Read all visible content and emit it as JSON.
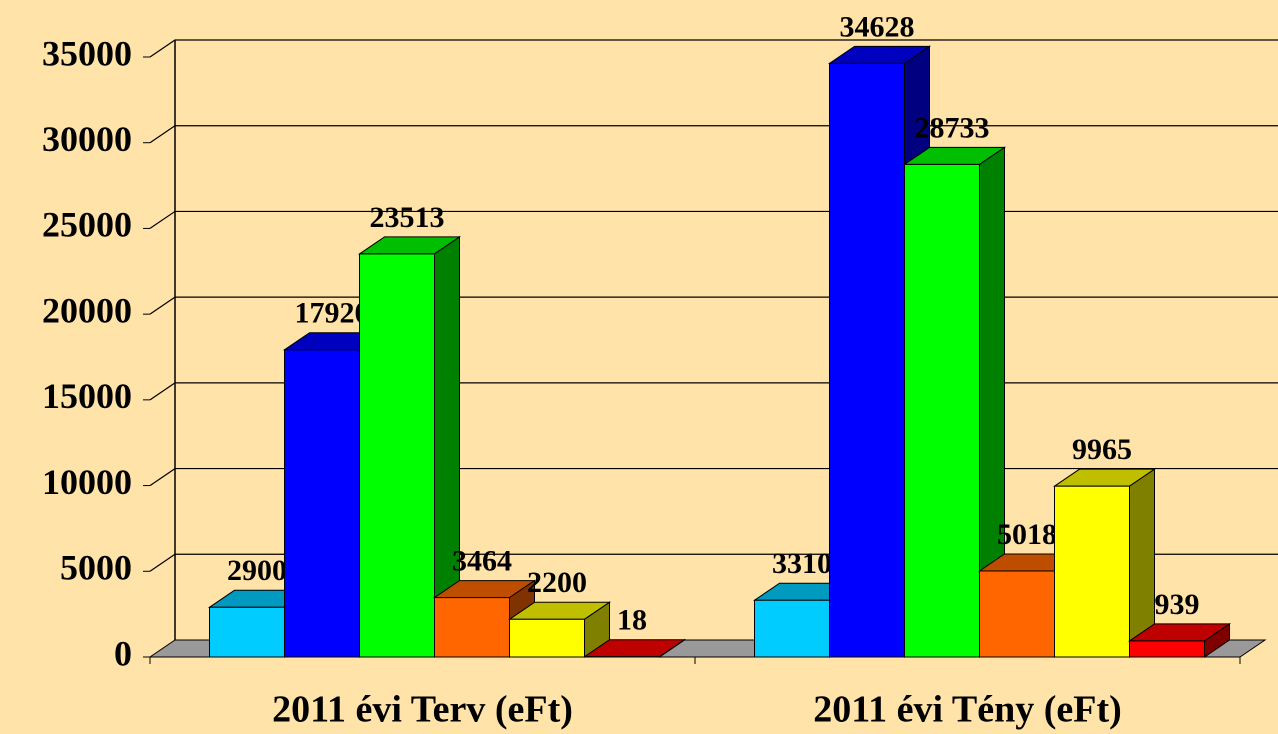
{
  "chart_data": {
    "type": "bar3d",
    "categories": [
      "2011 évi Terv (eFt)",
      "2011 évi Tény (eFt)"
    ],
    "series": [
      {
        "color": "#00CCFF",
        "values": [
          2900,
          3310
        ]
      },
      {
        "color": "#0000FF",
        "values": [
          17920,
          34628
        ]
      },
      {
        "color": "#00FF00",
        "values": [
          23513,
          28733
        ]
      },
      {
        "color": "#FF6600",
        "values": [
          3464,
          5018
        ]
      },
      {
        "color": "#FFFF00",
        "values": [
          2200,
          9965
        ]
      },
      {
        "color": "#FF0000",
        "values": [
          18,
          939
        ]
      }
    ],
    "ylim": [
      0,
      35000
    ],
    "yticks": [
      0,
      5000,
      10000,
      15000,
      20000,
      25000,
      30000,
      35000
    ],
    "grid": true
  }
}
